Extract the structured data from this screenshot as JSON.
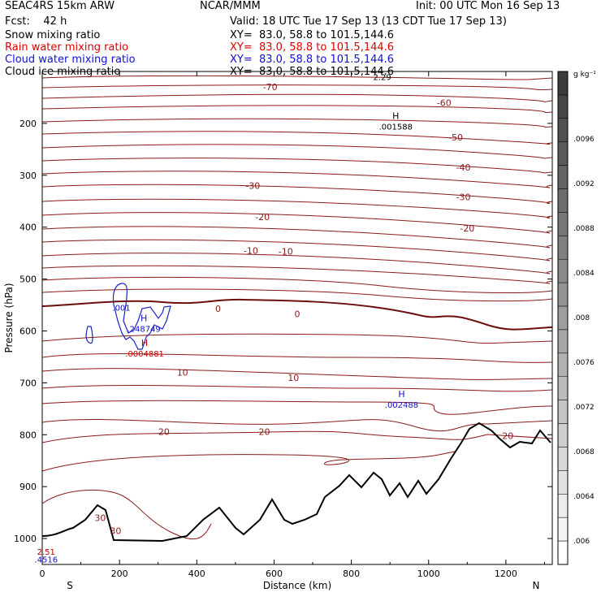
{
  "header": {
    "run": "SEAC4RS 15km ARW",
    "org": "NCAR/MMM",
    "init": "Init: 00 UTC Mon 16 Sep 13",
    "fcst": "Fcst:    42 h",
    "valid": "Valid: 18 UTC Tue 17 Sep 13 (13 CDT Tue 17 Sep 13)",
    "fields": [
      {
        "name": "Snow mixing ratio",
        "xy": "XY=  83.0, 58.8 to 101.5,144.6",
        "color": "#000000"
      },
      {
        "name": "Rain water mixing ratio",
        "xy": "XY=  83.0, 58.8 to 101.5,144.6",
        "color": "#e00000"
      },
      {
        "name": "Cloud water mixing ratio",
        "xy": "XY=  83.0, 58.8 to 101.5,144.6",
        "color": "#1010d0"
      },
      {
        "name": "Cloud ice mixing ratio",
        "xy": "XY=  83.0, 58.8 to 101.5,144.6",
        "color": "#000000"
      }
    ]
  },
  "chart_data": {
    "type": "contour cross-section",
    "xlabel": "Distance (km)",
    "ylabel": "Pressure (hPa)",
    "xlim": [
      0,
      1320
    ],
    "ylim": [
      1050,
      100
    ],
    "xticks": [
      "0",
      "200",
      "400",
      "600",
      "800",
      "1000",
      "1200"
    ],
    "yticks": [
      "200",
      "300",
      "400",
      "500",
      "600",
      "700",
      "800",
      "900",
      "1000"
    ],
    "end_labels": {
      "left": "S",
      "right": "N"
    },
    "temperature_labels": [
      {
        "text": "-70",
        "x": 590,
        "p": 130
      },
      {
        "text": "-60",
        "x": 1040,
        "p": 160
      },
      {
        "text": "-50",
        "x": 1070,
        "p": 227
      },
      {
        "text": "-40",
        "x": 1090,
        "p": 285
      },
      {
        "text": "-30",
        "x": 545,
        "p": 320
      },
      {
        "text": "-30",
        "x": 1090,
        "p": 342
      },
      {
        "text": "-20",
        "x": 570,
        "p": 380
      },
      {
        "text": "-20",
        "x": 1100,
        "p": 402
      },
      {
        "text": "-10",
        "x": 540,
        "p": 445
      },
      {
        "text": "-10",
        "x": 630,
        "p": 447
      },
      {
        "text": "0",
        "x": 455,
        "p": 557
      },
      {
        "text": "0",
        "x": 660,
        "p": 567
      },
      {
        "text": "10",
        "x": 363,
        "p": 680
      },
      {
        "text": "10",
        "x": 650,
        "p": 690
      },
      {
        "text": "20",
        "x": 315,
        "p": 794
      },
      {
        "text": "20",
        "x": 575,
        "p": 794
      },
      {
        "text": "20",
        "x": 1205,
        "p": 802
      },
      {
        "text": "30",
        "x": 150,
        "p": 960
      },
      {
        "text": "30",
        "x": 190,
        "p": 985
      }
    ],
    "extrema": [
      {
        "mark": "H",
        "value": ".001588",
        "x": 915,
        "p": 207,
        "color": "#000000"
      },
      {
        "mark": "H",
        "value": ".248749",
        "x": 263,
        "p": 597,
        "color": "#1010d0"
      },
      {
        "mark": "H",
        "value": ".0004881",
        "x": 265,
        "p": 645,
        "color": "#c00000"
      },
      {
        "mark": "H",
        "value": ".002488",
        "x": 930,
        "p": 743,
        "color": "#1010d0"
      }
    ],
    "other_labels": [
      {
        "text": ".001",
        "x": 205,
        "p": 555,
        "color": "#1010d0"
      },
      {
        "text": "2.51",
        "x": 10,
        "p": 1025,
        "color": "#c00000"
      },
      {
        "text": "2.29",
        "x": 880,
        "p": 110,
        "color": "#000000"
      },
      {
        "text": ".4516",
        "x": 10,
        "p": 1040,
        "color": "#1010d0"
      }
    ],
    "colorbar": {
      "units": "g kg⁻¹",
      "ticks": [
        ".006",
        ".0064",
        ".0068",
        ".0072",
        ".0076",
        ".008",
        ".0084",
        ".0088",
        ".0092",
        ".0096"
      ]
    }
  }
}
